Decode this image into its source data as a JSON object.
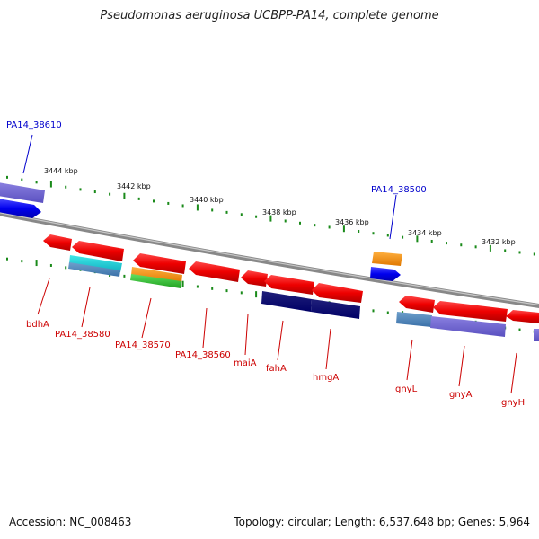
{
  "title": "Pseudomonas aeruginosa UCBPP-PA14, complete genome",
  "footer": {
    "accession": "Accession: NC_008463",
    "topology": "Topology: circular; Length: 6,537,648 bp; Genes: 5,964"
  },
  "ticks": [
    {
      "label": "3444 kbp"
    },
    {
      "label": "3442 kbp"
    },
    {
      "label": "3440 kbp"
    },
    {
      "label": "3438 kbp"
    },
    {
      "label": "3436 kbp"
    },
    {
      "label": "3434 kbp"
    },
    {
      "label": "3432 kbp"
    }
  ],
  "genes_top": [
    {
      "label": "PA14_38610",
      "color": "#0000cc"
    },
    {
      "label": "PA14_38500",
      "color": "#0000cc"
    }
  ],
  "genes_bottom": [
    {
      "label": "bdhA",
      "color": "#cc0000"
    },
    {
      "label": "PA14_38580",
      "color": "#cc0000"
    },
    {
      "label": "PA14_38570",
      "color": "#cc0000"
    },
    {
      "label": "PA14_38560",
      "color": "#cc0000"
    },
    {
      "label": "maiA",
      "color": "#cc0000"
    },
    {
      "label": "fahA",
      "color": "#cc0000"
    },
    {
      "label": "hmgA",
      "color": "#cc0000"
    },
    {
      "label": "gnyL",
      "color": "#cc0000"
    },
    {
      "label": "gnyA",
      "color": "#cc0000"
    },
    {
      "label": "gnyH",
      "color": "#cc0000"
    }
  ]
}
